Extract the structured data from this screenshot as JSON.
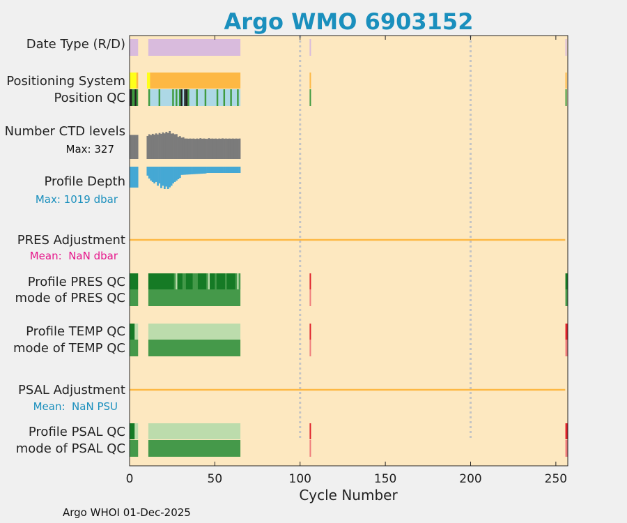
{
  "title": "Argo WMO 6903152",
  "footer": "Argo WHOI 01-Dec-2025",
  "colors": {
    "background": "#fde8c0",
    "title": "#1a8fbd",
    "realtime_mode": "#d9bbdd",
    "gps": "#fdb844",
    "argos": "#ffff1a",
    "pos_qc_good": "#3f9b3f",
    "pos_qc_light": "#add8e6",
    "pos_qc_dark": "#222222",
    "ctd_levels": "#7b7b7b",
    "profile_depth": "#45a8d4",
    "adjustment_line": "#fdb844",
    "qc_A": "#157a25",
    "qc_B": "#45994a",
    "qc_light": "#bcdcac",
    "qc_bad": "#e0202a",
    "qc_bad_light": "#ef7a7a",
    "gridline": "#c4c4c4",
    "pres_mean": "#e6158a",
    "psal_mean": "#1a8fbd"
  },
  "chart_data": {
    "type": "heatmap",
    "title": "Argo WMO 6903152",
    "xlabel": "Cycle Number",
    "xlim": [
      0,
      257
    ],
    "xticks": [
      0,
      50,
      100,
      150,
      200,
      250
    ],
    "vertical_gridlines_at": [
      100,
      200
    ],
    "cycle_ranges": [
      [
        0,
        5
      ],
      [
        11,
        65
      ]
    ],
    "isolated_cycles": [
      106,
      256
    ],
    "rows": [
      {
        "key": "date_type",
        "label": "Date Type (R/D)",
        "value": "R (real-time) for all cycles"
      },
      {
        "key": "positioning_system",
        "label": "Positioning System",
        "value": "mostly GPS; a few early Argos cycles"
      },
      {
        "key": "position_qc",
        "label": "Position QC"
      },
      {
        "key": "ctd_levels",
        "label": "Number CTD levels",
        "annotation": "Max: 327",
        "max": 327
      },
      {
        "key": "profile_depth",
        "label": "Profile Depth",
        "annotation": "Max: 1019 dbar",
        "max": 1019
      },
      {
        "key": "pres_adjustment",
        "label": "PRES Adjustment",
        "annotation": "Mean:  NaN dbar"
      },
      {
        "key": "profile_pres_qc",
        "label": "Profile PRES QC"
      },
      {
        "key": "mode_pres_qc",
        "label": "mode of PRES QC"
      },
      {
        "key": "profile_temp_qc",
        "label": "Profile TEMP QC"
      },
      {
        "key": "mode_temp_qc",
        "label": "mode of TEMP QC"
      },
      {
        "key": "psal_adjustment",
        "label": "PSAL Adjustment",
        "annotation": "Mean:  NaN PSU"
      },
      {
        "key": "profile_psal_qc",
        "label": "Profile PSAL QC"
      },
      {
        "key": "mode_psal_qc",
        "label": "mode of PSAL QC"
      }
    ],
    "ctd_levels_per_cycle": {
      "1": 282,
      "2": 282,
      "3": 282,
      "4": 282,
      "5": 282,
      "11": 270,
      "12": 290,
      "13": 280,
      "14": 295,
      "15": 285,
      "16": 300,
      "17": 288,
      "18": 305,
      "19": 295,
      "20": 312,
      "21": 300,
      "22": 318,
      "23": 305,
      "24": 327,
      "25": 298,
      "26": 300,
      "27": 290,
      "28": 292,
      "29": 260,
      "30": 268,
      "31": 250,
      "32": 255,
      "33": 240,
      "34": 240,
      "35": 238,
      "36": 240,
      "37": 238,
      "38": 240,
      "39": 236,
      "40": 240,
      "41": 236,
      "42": 244,
      "43": 238,
      "44": 240,
      "45": 238,
      "46": 236,
      "47": 244,
      "48": 238,
      "49": 240,
      "50": 238,
      "51": 240,
      "52": 236,
      "53": 240,
      "54": 238,
      "55": 242,
      "56": 238,
      "57": 240,
      "58": 238,
      "59": 240,
      "60": 238,
      "61": 240,
      "62": 238,
      "63": 240,
      "64": 238,
      "65": 240
    },
    "profile_depth_per_cycle": {
      "1": 1010,
      "2": 1010,
      "3": 1019,
      "4": 1010,
      "5": 1010,
      "11": 1000,
      "12": 1005,
      "13": 1008,
      "14": 1010,
      "15": 1012,
      "16": 1010,
      "17": 1015,
      "18": 1012,
      "19": 1018,
      "20": 1015,
      "21": 1019,
      "22": 1016,
      "23": 1019,
      "24": 1017,
      "25": 1015,
      "26": 1012,
      "27": 1010,
      "28": 1008,
      "29": 1006,
      "30": 1004,
      "31": 1002,
      "32": 1000,
      "33": 1000,
      "34": 1000,
      "35": 1000,
      "36": 1000,
      "37": 1000,
      "38": 1000,
      "39": 1000,
      "40": 1000,
      "41": 1000,
      "42": 1002,
      "43": 1000,
      "44": 1000,
      "45": 1000,
      "46": 1000,
      "47": 1000,
      "48": 1000,
      "49": 1000,
      "50": 1000,
      "51": 1000,
      "52": 1000,
      "53": 1000,
      "54": 1000,
      "55": 1000,
      "56": 1000,
      "57": 1000,
      "58": 1000,
      "59": 1000,
      "60": 1000,
      "61": 1000,
      "62": 1000,
      "63": 1000,
      "64": 1000,
      "65": 1000
    }
  }
}
